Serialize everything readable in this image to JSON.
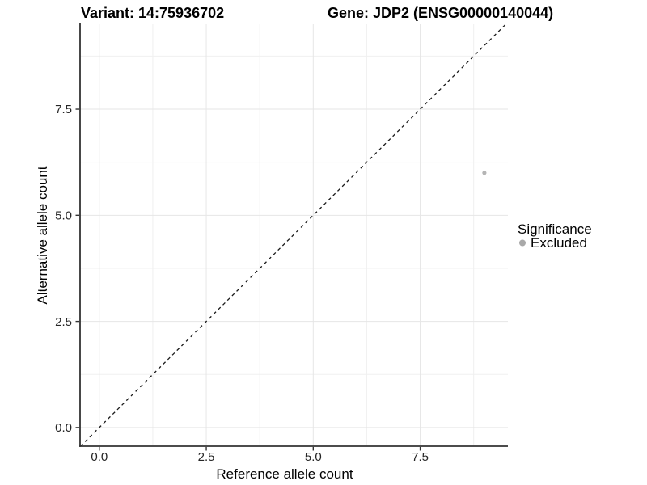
{
  "page": {
    "background": "#ffffff"
  },
  "chart_data": {
    "type": "scatter",
    "title_variant": "Variant: 14:75936702",
    "title_gene": "Gene: JDP2 (ENSG00000140044)",
    "xlabel": "Reference allele count",
    "ylabel": "Alternative allele count",
    "xlim": [
      -0.45,
      9.55
    ],
    "ylim": [
      -0.44,
      9.5
    ],
    "x_ticks": {
      "values": [
        0,
        2.5,
        5,
        7.5
      ],
      "labels": [
        "0.0",
        "2.5",
        "5.0",
        "7.5"
      ]
    },
    "y_ticks": {
      "values": [
        0,
        2.5,
        5,
        7.5
      ],
      "labels": [
        "0.0",
        "2.5",
        "5.0",
        "7.5"
      ]
    },
    "x_minor_ticks": [
      1.25,
      3.75,
      6.25,
      8.75
    ],
    "y_minor_ticks": [
      1.25,
      3.75,
      6.25,
      8.75
    ],
    "grid": "major+minor",
    "legend_position": "right",
    "reference_line": {
      "kind": "identity",
      "style": "dashed",
      "dash": "4 4",
      "color": "#1a1a1a"
    },
    "series": [
      {
        "name": "Excluded",
        "color": "#b5b5b5",
        "point_radius": 2.6,
        "points": [
          {
            "x": 9,
            "y": 6
          }
        ]
      }
    ],
    "legend": {
      "title": "Significance",
      "entries": [
        {
          "label": "Excluded",
          "color": "#a9a9a9",
          "key_radius": 4
        }
      ]
    },
    "colors": {
      "grid_major": "#e6e6e6",
      "grid_minor": "#f0f0f0",
      "axis": "#333333",
      "point": "#b5b5b5"
    }
  }
}
